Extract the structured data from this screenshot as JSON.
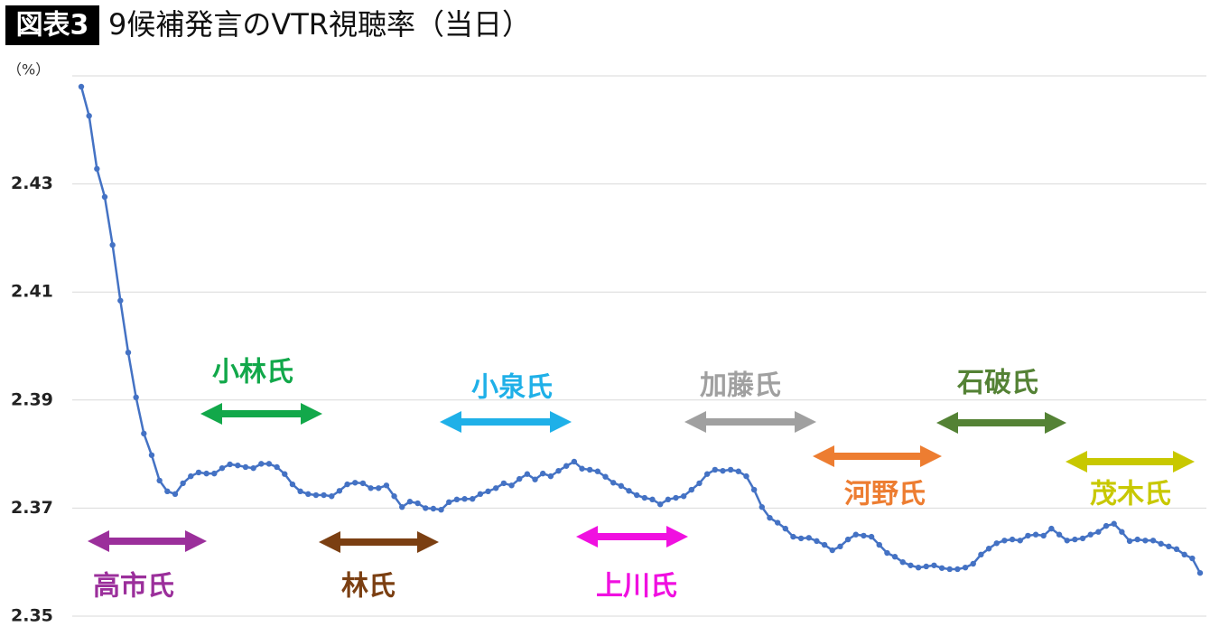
{
  "chart_data": {
    "type": "line",
    "title_badge": "図表3",
    "title": "9候補発言のVTR視聴率（当日）",
    "y_unit": "（%）",
    "series": [
      {
        "name": "VTR視聴率",
        "color": "#4472c4",
        "values": [
          2.448,
          2.4426,
          2.4328,
          2.4276,
          2.4187,
          2.4084,
          2.3988,
          2.3905,
          2.3838,
          2.3798,
          2.3751,
          2.3731,
          2.3726,
          2.3746,
          2.3759,
          2.3766,
          2.3764,
          2.3764,
          2.3774,
          2.3781,
          2.3779,
          2.3776,
          2.3774,
          2.3782,
          2.3782,
          2.3776,
          2.3763,
          2.3744,
          2.3731,
          2.3726,
          2.3724,
          2.3724,
          2.3722,
          2.3732,
          2.3744,
          2.3747,
          2.3746,
          2.3737,
          2.3737,
          2.3742,
          2.3722,
          2.3702,
          2.3712,
          2.3709,
          2.37,
          2.3699,
          2.3697,
          2.3711,
          2.3716,
          2.3717,
          2.3717,
          2.3726,
          2.3731,
          2.3737,
          2.3746,
          2.3742,
          2.3754,
          2.3763,
          2.3753,
          2.3764,
          2.3759,
          2.3769,
          2.3778,
          2.3786,
          2.3773,
          2.3771,
          2.3768,
          2.3758,
          2.3747,
          2.3741,
          2.3732,
          2.3724,
          2.3719,
          2.3716,
          2.3707,
          2.3716,
          2.3719,
          2.3722,
          2.3734,
          2.3746,
          2.3763,
          2.3771,
          2.3769,
          2.3771,
          2.3768,
          2.3759,
          2.3734,
          2.3702,
          2.3682,
          2.3673,
          2.3662,
          2.3647,
          2.3644,
          2.3645,
          2.3639,
          2.3632,
          2.3622,
          2.3629,
          2.3642,
          2.3651,
          2.3649,
          2.3647,
          2.3632,
          2.3617,
          2.361,
          2.36,
          2.3594,
          2.359,
          2.3592,
          2.3594,
          2.3589,
          2.3587,
          2.3587,
          2.359,
          2.3597,
          2.3614,
          2.3625,
          2.3635,
          2.364,
          2.3642,
          2.364,
          2.3649,
          2.3651,
          2.3649,
          2.3662,
          2.3651,
          2.364,
          2.3642,
          2.3644,
          2.3651,
          2.3656,
          2.3667,
          2.3671,
          2.3656,
          2.3639,
          2.3642,
          2.364,
          2.364,
          2.3634,
          2.3629,
          2.3624,
          2.3614,
          2.3607,
          2.358
        ]
      }
    ],
    "ylim": [
      2.35,
      2.45
    ],
    "yticks": [
      2.35,
      2.37,
      2.39,
      2.41,
      2.43
    ],
    "grid": true,
    "annotations": [
      {
        "text": "高市氏",
        "color": "#9b2f9b"
      },
      {
        "text": "小林氏",
        "color": "#12a84a"
      },
      {
        "text": "林氏",
        "color": "#7b3f12"
      },
      {
        "text": "小泉氏",
        "color": "#1fb0e8"
      },
      {
        "text": "上川氏",
        "color": "#f010e0"
      },
      {
        "text": "加藤氏",
        "color": "#a0a0a0"
      },
      {
        "text": "河野氏",
        "color": "#ed7d31"
      },
      {
        "text": "石破氏",
        "color": "#548235"
      },
      {
        "text": "茂木氏",
        "color": "#c8c800"
      }
    ]
  }
}
